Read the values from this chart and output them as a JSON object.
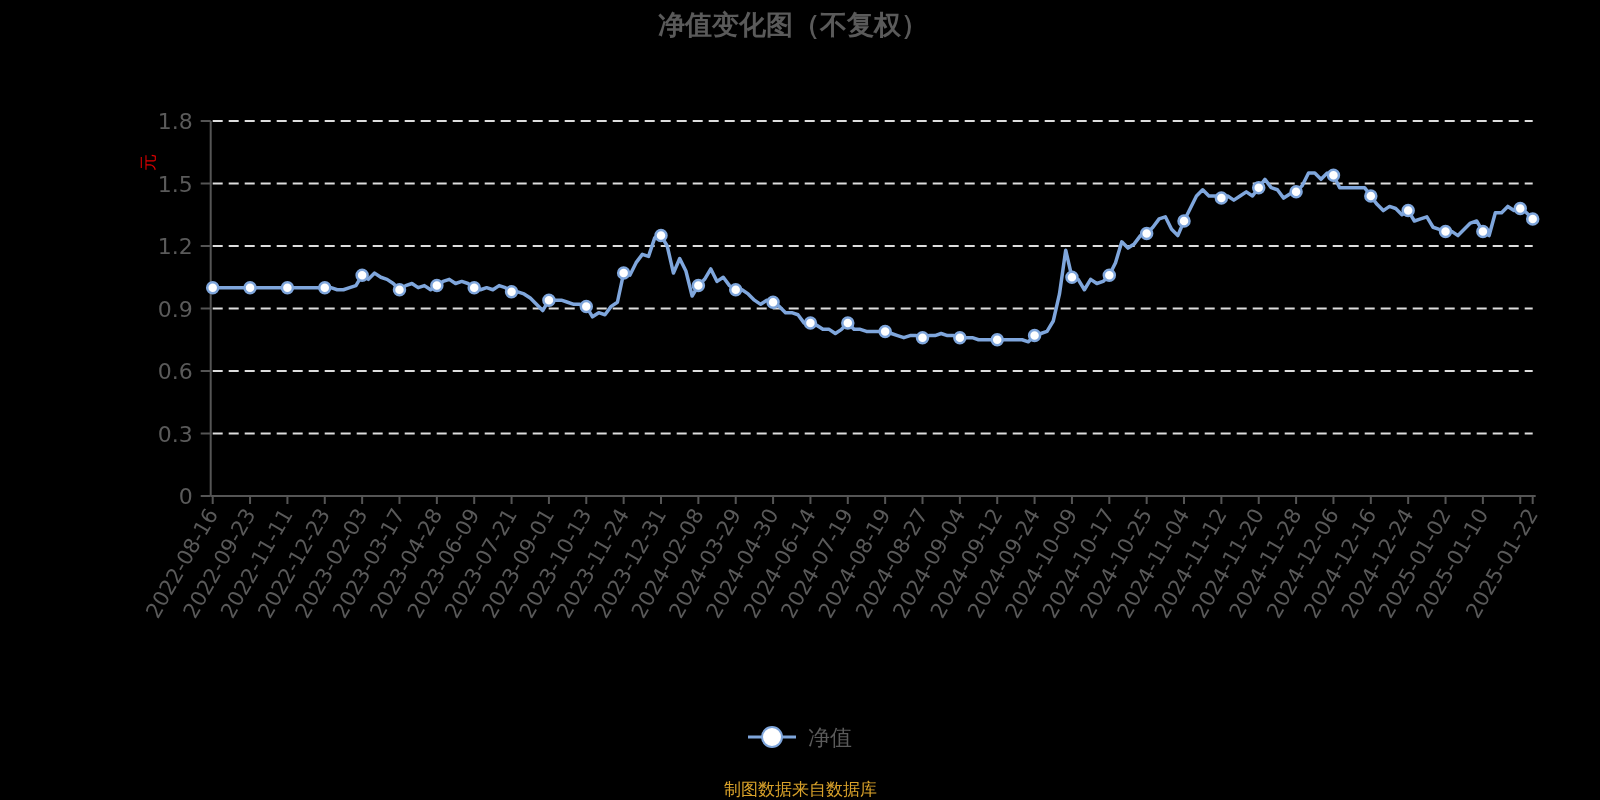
{
  "chart_data": {
    "type": "line",
    "title": "净值变化图（不复权）",
    "ylabel": "元",
    "categories": [
      "2022-08-16",
      null,
      null,
      null,
      null,
      null,
      "2022-09-23",
      null,
      null,
      null,
      null,
      null,
      "2022-11-11",
      null,
      null,
      null,
      null,
      null,
      "2022-12-23",
      null,
      null,
      null,
      null,
      null,
      "2023-02-03",
      null,
      null,
      null,
      null,
      null,
      "2023-03-17",
      null,
      null,
      null,
      null,
      null,
      "2023-04-28",
      null,
      null,
      null,
      null,
      null,
      "2023-06-09",
      null,
      null,
      null,
      null,
      null,
      "2023-07-21",
      null,
      null,
      null,
      null,
      null,
      "2023-09-01",
      null,
      null,
      null,
      null,
      null,
      "2023-10-13",
      null,
      null,
      null,
      null,
      null,
      "2023-11-24",
      null,
      null,
      null,
      null,
      null,
      "2023-12-31",
      null,
      null,
      null,
      null,
      null,
      "2024-02-08",
      null,
      null,
      null,
      null,
      null,
      "2024-03-29",
      null,
      null,
      null,
      null,
      null,
      "2024-04-30",
      null,
      null,
      null,
      null,
      null,
      "2024-06-14",
      null,
      null,
      null,
      null,
      null,
      "2024-07-19",
      null,
      null,
      null,
      null,
      null,
      "2024-08-19",
      null,
      null,
      null,
      null,
      null,
      "2024-08-27",
      null,
      null,
      null,
      null,
      null,
      "2024-09-04",
      null,
      null,
      null,
      null,
      null,
      "2024-09-12",
      null,
      null,
      null,
      null,
      null,
      "2024-09-24",
      null,
      null,
      null,
      null,
      null,
      "2024-10-09",
      null,
      null,
      null,
      null,
      null,
      "2024-10-17",
      null,
      null,
      null,
      null,
      null,
      "2024-10-25",
      null,
      null,
      null,
      null,
      null,
      "2024-11-04",
      null,
      null,
      null,
      null,
      null,
      "2024-11-12",
      null,
      null,
      null,
      null,
      null,
      "2024-11-20",
      null,
      null,
      null,
      null,
      null,
      "2024-11-28",
      null,
      null,
      null,
      null,
      null,
      "2024-12-06",
      null,
      null,
      null,
      null,
      null,
      "2024-12-16",
      null,
      null,
      null,
      null,
      null,
      "2024-12-24",
      null,
      null,
      null,
      null,
      null,
      "2025-01-02",
      null,
      null,
      null,
      null,
      null,
      "2025-01-10",
      null,
      null,
      null,
      null,
      null,
      null,
      null,
      "2025-01-22"
    ],
    "series": [
      {
        "name": "净值",
        "color": "#7fa6dc",
        "values": [
          1.0,
          1.0,
          1.0,
          1.0,
          1.0,
          1.0,
          1.0,
          1.0,
          1.0,
          1.0,
          1.0,
          1.0,
          1.0,
          1.0,
          1.0,
          1.0,
          1.0,
          1.0,
          1.0,
          1.0,
          0.99,
          0.99,
          1.0,
          1.01,
          1.06,
          1.04,
          1.07,
          1.05,
          1.04,
          1.02,
          0.99,
          1.01,
          1.02,
          1.0,
          1.01,
          0.99,
          1.01,
          1.03,
          1.04,
          1.02,
          1.03,
          1.02,
          1.0,
          0.99,
          1.0,
          0.99,
          1.01,
          1.0,
          0.98,
          0.98,
          0.97,
          0.95,
          0.92,
          0.89,
          0.94,
          0.94,
          0.94,
          0.93,
          0.92,
          0.92,
          0.91,
          0.86,
          0.88,
          0.87,
          0.91,
          0.93,
          1.07,
          1.06,
          1.12,
          1.16,
          1.15,
          1.24,
          1.25,
          1.2,
          1.07,
          1.14,
          1.08,
          0.96,
          1.01,
          1.04,
          1.09,
          1.03,
          1.05,
          1.01,
          0.99,
          0.99,
          0.97,
          0.94,
          0.92,
          0.94,
          0.93,
          0.91,
          0.88,
          0.88,
          0.87,
          0.83,
          0.83,
          0.82,
          0.8,
          0.8,
          0.78,
          0.8,
          0.83,
          0.8,
          0.8,
          0.79,
          0.79,
          0.79,
          0.79,
          0.78,
          0.77,
          0.76,
          0.77,
          0.77,
          0.76,
          0.77,
          0.77,
          0.78,
          0.77,
          0.77,
          0.76,
          0.76,
          0.76,
          0.75,
          0.75,
          0.75,
          0.75,
          0.75,
          0.75,
          0.75,
          0.75,
          0.74,
          0.77,
          0.78,
          0.79,
          0.84,
          0.97,
          1.18,
          1.05,
          1.04,
          0.99,
          1.04,
          1.02,
          1.03,
          1.06,
          1.12,
          1.22,
          1.19,
          1.21,
          1.25,
          1.26,
          1.29,
          1.33,
          1.34,
          1.28,
          1.25,
          1.32,
          1.38,
          1.44,
          1.47,
          1.44,
          1.44,
          1.43,
          1.44,
          1.42,
          1.44,
          1.46,
          1.44,
          1.48,
          1.52,
          1.48,
          1.47,
          1.43,
          1.45,
          1.46,
          1.49,
          1.55,
          1.55,
          1.52,
          1.55,
          1.54,
          1.48,
          1.48,
          1.48,
          1.48,
          1.48,
          1.44,
          1.4,
          1.37,
          1.39,
          1.38,
          1.35,
          1.37,
          1.32,
          1.33,
          1.34,
          1.29,
          1.28,
          1.27,
          1.27,
          1.25,
          1.28,
          1.31,
          1.32,
          1.27,
          1.25,
          1.36,
          1.36,
          1.39,
          1.37,
          1.38,
          1.36,
          1.33
        ]
      }
    ],
    "ylim": [
      0,
      1.8
    ],
    "yticks": [
      0,
      0.3,
      0.6,
      0.9,
      1.2,
      1.5,
      1.8
    ],
    "grid": "y",
    "legend": "bottom",
    "line_style": "solid",
    "annotations": [
      "制图数据来自数据库"
    ]
  }
}
